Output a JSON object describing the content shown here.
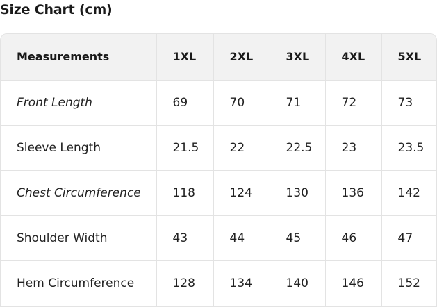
{
  "title": "Size Chart (cm)",
  "headers": [
    "Measurements",
    "1XL",
    "2XL",
    "3XL",
    "4XL",
    "5XL"
  ],
  "rows": [
    {
      "label": "Front Length",
      "italic": true,
      "values": [
        "69",
        "70",
        "71",
        "72",
        "73"
      ]
    },
    {
      "label": "Sleeve Length",
      "italic": false,
      "values": [
        "21.5",
        "22",
        "22.5",
        "23",
        "23.5"
      ]
    },
    {
      "label": "Chest Circumference",
      "italic": true,
      "values": [
        "118",
        "124",
        "130",
        "136",
        "142"
      ]
    },
    {
      "label": "Shoulder Width",
      "italic": false,
      "values": [
        "43",
        "44",
        "45",
        "46",
        "47"
      ]
    },
    {
      "label": "Hem Circumference",
      "italic": false,
      "values": [
        "128",
        "134",
        "140",
        "146",
        "152"
      ]
    }
  ]
}
